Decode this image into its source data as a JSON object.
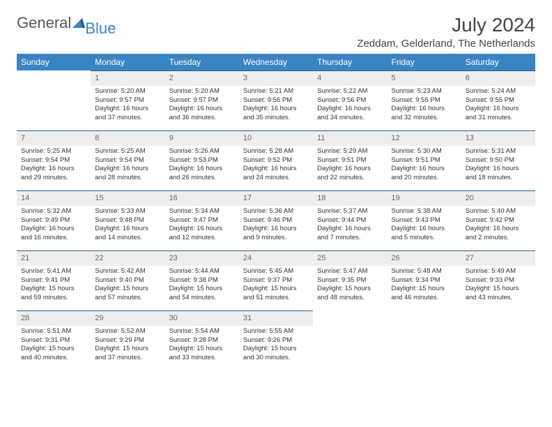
{
  "brand": {
    "part1": "General",
    "part2": "Blue"
  },
  "title": "July 2024",
  "location": "Zeddam, Gelderland, The Netherlands",
  "colors": {
    "header_bg": "#3a84c4",
    "daynum_bg": "#eeeeee",
    "daynum_border": "#2a5c8a",
    "text": "#333333",
    "page_bg": "#ffffff"
  },
  "weekdays": [
    "Sunday",
    "Monday",
    "Tuesday",
    "Wednesday",
    "Thursday",
    "Friday",
    "Saturday"
  ],
  "weeks": [
    [
      null,
      {
        "n": "1",
        "sr": "5:20 AM",
        "ss": "9:57 PM",
        "dl": "16 hours and 37 minutes."
      },
      {
        "n": "2",
        "sr": "5:20 AM",
        "ss": "9:57 PM",
        "dl": "16 hours and 36 minutes."
      },
      {
        "n": "3",
        "sr": "5:21 AM",
        "ss": "9:56 PM",
        "dl": "16 hours and 35 minutes."
      },
      {
        "n": "4",
        "sr": "5:22 AM",
        "ss": "9:56 PM",
        "dl": "16 hours and 34 minutes."
      },
      {
        "n": "5",
        "sr": "5:23 AM",
        "ss": "9:55 PM",
        "dl": "16 hours and 32 minutes."
      },
      {
        "n": "6",
        "sr": "5:24 AM",
        "ss": "9:55 PM",
        "dl": "16 hours and 31 minutes."
      }
    ],
    [
      {
        "n": "7",
        "sr": "5:25 AM",
        "ss": "9:54 PM",
        "dl": "16 hours and 29 minutes."
      },
      {
        "n": "8",
        "sr": "5:25 AM",
        "ss": "9:54 PM",
        "dl": "16 hours and 28 minutes."
      },
      {
        "n": "9",
        "sr": "5:26 AM",
        "ss": "9:53 PM",
        "dl": "16 hours and 26 minutes."
      },
      {
        "n": "10",
        "sr": "5:28 AM",
        "ss": "9:52 PM",
        "dl": "16 hours and 24 minutes."
      },
      {
        "n": "11",
        "sr": "5:29 AM",
        "ss": "9:51 PM",
        "dl": "16 hours and 22 minutes."
      },
      {
        "n": "12",
        "sr": "5:30 AM",
        "ss": "9:51 PM",
        "dl": "16 hours and 20 minutes."
      },
      {
        "n": "13",
        "sr": "5:31 AM",
        "ss": "9:50 PM",
        "dl": "16 hours and 18 minutes."
      }
    ],
    [
      {
        "n": "14",
        "sr": "5:32 AM",
        "ss": "9:49 PM",
        "dl": "16 hours and 16 minutes."
      },
      {
        "n": "15",
        "sr": "5:33 AM",
        "ss": "9:48 PM",
        "dl": "16 hours and 14 minutes."
      },
      {
        "n": "16",
        "sr": "5:34 AM",
        "ss": "9:47 PM",
        "dl": "16 hours and 12 minutes."
      },
      {
        "n": "17",
        "sr": "5:36 AM",
        "ss": "9:46 PM",
        "dl": "16 hours and 9 minutes."
      },
      {
        "n": "18",
        "sr": "5:37 AM",
        "ss": "9:44 PM",
        "dl": "16 hours and 7 minutes."
      },
      {
        "n": "19",
        "sr": "5:38 AM",
        "ss": "9:43 PM",
        "dl": "16 hours and 5 minutes."
      },
      {
        "n": "20",
        "sr": "5:40 AM",
        "ss": "9:42 PM",
        "dl": "16 hours and 2 minutes."
      }
    ],
    [
      {
        "n": "21",
        "sr": "5:41 AM",
        "ss": "9:41 PM",
        "dl": "15 hours and 59 minutes."
      },
      {
        "n": "22",
        "sr": "5:42 AM",
        "ss": "9:40 PM",
        "dl": "15 hours and 57 minutes."
      },
      {
        "n": "23",
        "sr": "5:44 AM",
        "ss": "9:38 PM",
        "dl": "15 hours and 54 minutes."
      },
      {
        "n": "24",
        "sr": "5:45 AM",
        "ss": "9:37 PM",
        "dl": "15 hours and 51 minutes."
      },
      {
        "n": "25",
        "sr": "5:47 AM",
        "ss": "9:35 PM",
        "dl": "15 hours and 48 minutes."
      },
      {
        "n": "26",
        "sr": "5:48 AM",
        "ss": "9:34 PM",
        "dl": "15 hours and 46 minutes."
      },
      {
        "n": "27",
        "sr": "5:49 AM",
        "ss": "9:33 PM",
        "dl": "15 hours and 43 minutes."
      }
    ],
    [
      {
        "n": "28",
        "sr": "5:51 AM",
        "ss": "9:31 PM",
        "dl": "15 hours and 40 minutes."
      },
      {
        "n": "29",
        "sr": "5:52 AM",
        "ss": "9:29 PM",
        "dl": "15 hours and 37 minutes."
      },
      {
        "n": "30",
        "sr": "5:54 AM",
        "ss": "9:28 PM",
        "dl": "15 hours and 33 minutes."
      },
      {
        "n": "31",
        "sr": "5:55 AM",
        "ss": "9:26 PM",
        "dl": "15 hours and 30 minutes."
      },
      null,
      null,
      null
    ]
  ],
  "labels": {
    "sunrise": "Sunrise:",
    "sunset": "Sunset:",
    "daylight": "Daylight:"
  }
}
